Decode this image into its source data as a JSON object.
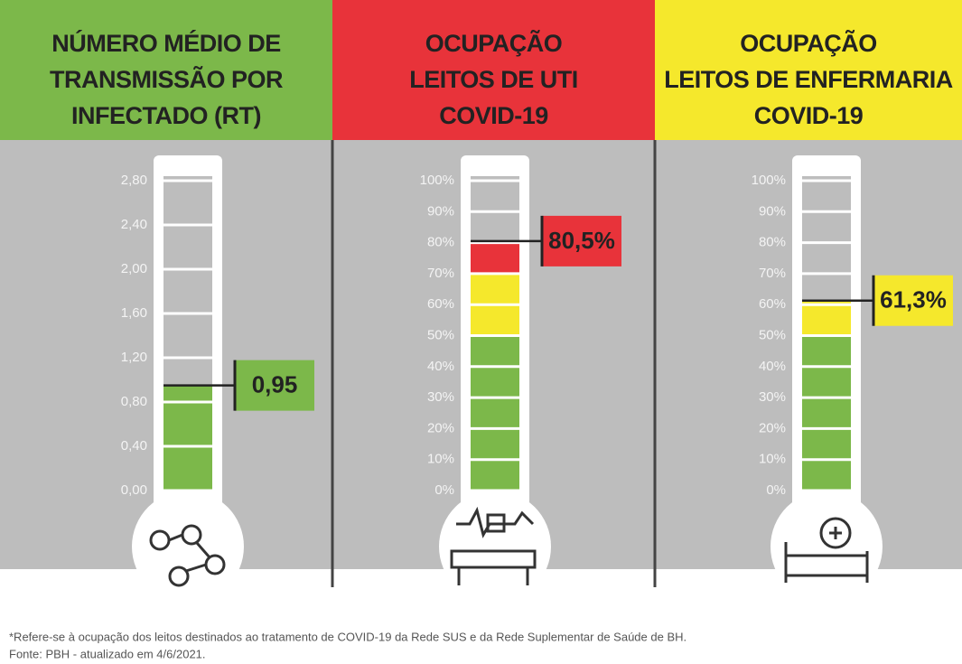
{
  "chart_data": [
    {
      "type": "thermometer",
      "title": [
        "NÚMERO MÉDIO DE",
        "TRANSMISSÃO POR",
        "INFECTADO (RT)"
      ],
      "header_color": "#7cb84a",
      "value": 0.95,
      "value_label": "0,95",
      "color": "#7cb84a",
      "ylim": [
        0,
        2.8
      ],
      "yticks": [
        {
          "value": 0,
          "label": "0,00"
        },
        {
          "value": 0.4,
          "label": "0,40"
        },
        {
          "value": 0.8,
          "label": "0,80"
        },
        {
          "value": 1.2,
          "label": "1,20"
        },
        {
          "value": 1.6,
          "label": "1,60"
        },
        {
          "value": 2.0,
          "label": "2,00"
        },
        {
          "value": 2.4,
          "label": "2,40"
        },
        {
          "value": 2.8,
          "label": "2,80"
        }
      ],
      "zones": [
        {
          "to": 2.8,
          "color": "#7cb84a"
        }
      ]
    },
    {
      "type": "thermometer",
      "title": [
        "OCUPAÇÃO",
        "LEITOS DE UTI",
        "COVID-19"
      ],
      "header_color": "#e8333a",
      "value": 80.5,
      "value_label": "80,5%",
      "color": "#e8333a",
      "ylim": [
        0,
        100
      ],
      "yticks": [
        {
          "value": 0,
          "label": "0%"
        },
        {
          "value": 10,
          "label": "10%"
        },
        {
          "value": 20,
          "label": "20%"
        },
        {
          "value": 30,
          "label": "30%"
        },
        {
          "value": 40,
          "label": "40%"
        },
        {
          "value": 50,
          "label": "50%"
        },
        {
          "value": 60,
          "label": "60%"
        },
        {
          "value": 70,
          "label": "70%"
        },
        {
          "value": 80,
          "label": "80%"
        },
        {
          "value": 90,
          "label": "90%"
        },
        {
          "value": 100,
          "label": "100%"
        }
      ],
      "zones": [
        {
          "to": 50,
          "color": "#7cb84a"
        },
        {
          "to": 70,
          "color": "#f5e82c"
        },
        {
          "to": 100,
          "color": "#e8333a"
        }
      ]
    },
    {
      "type": "thermometer",
      "title": [
        "OCUPAÇÃO",
        "LEITOS DE ENFERMARIA",
        "COVID-19"
      ],
      "header_color": "#f5e82c",
      "value": 61.3,
      "value_label": "61,3%",
      "color": "#f5e82c",
      "ylim": [
        0,
        100
      ],
      "yticks": [
        {
          "value": 0,
          "label": "0%"
        },
        {
          "value": 10,
          "label": "10%"
        },
        {
          "value": 20,
          "label": "20%"
        },
        {
          "value": 30,
          "label": "30%"
        },
        {
          "value": 40,
          "label": "40%"
        },
        {
          "value": 50,
          "label": "50%"
        },
        {
          "value": 60,
          "label": "60%"
        },
        {
          "value": 70,
          "label": "70%"
        },
        {
          "value": 80,
          "label": "80%"
        },
        {
          "value": 90,
          "label": "90%"
        },
        {
          "value": 100,
          "label": "100%"
        }
      ],
      "zones": [
        {
          "to": 50,
          "color": "#7cb84a"
        },
        {
          "to": 70,
          "color": "#f5e82c"
        },
        {
          "to": 100,
          "color": "#e8333a"
        }
      ]
    }
  ],
  "footnote": [
    "*Refere-se à ocupação dos leitos destinados ao tratamento de COVID-19 da Rede SUS e da Rede Suplementar de Saúde de BH.",
    "Fonte: PBH - atualizado em 4/6/2021."
  ]
}
